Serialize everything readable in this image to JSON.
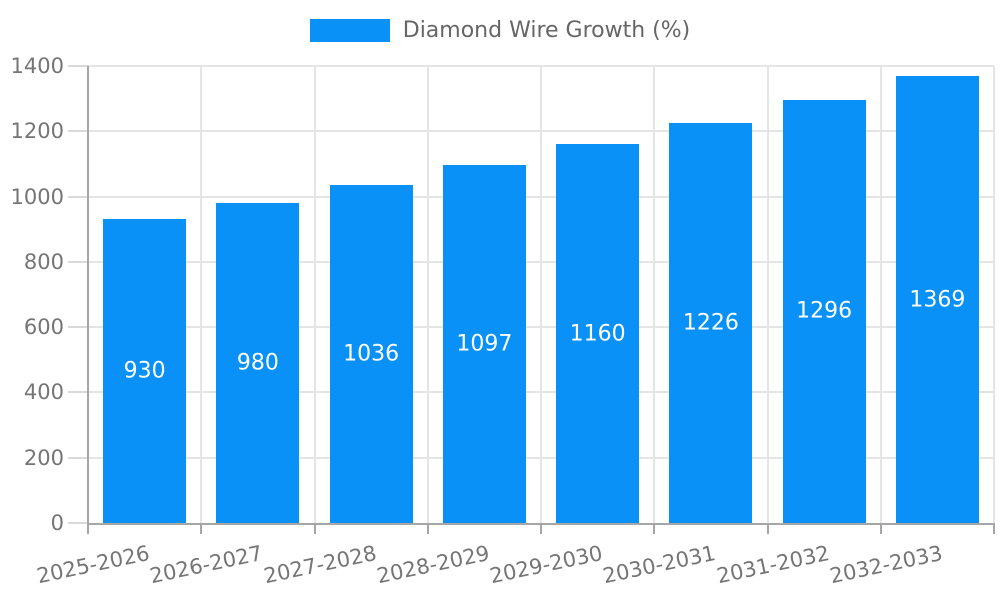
{
  "legend": {
    "label": "Diamond Wire Growth (%)"
  },
  "chart_data": {
    "type": "bar",
    "title": "",
    "categories": [
      "2025-2026",
      "2026-2027",
      "2027-2028",
      "2028-2029",
      "2029-2030",
      "2030-2031",
      "2031-2032",
      "2032-2033"
    ],
    "series": [
      {
        "name": "Diamond Wire Growth (%)",
        "values": [
          930,
          980,
          1036,
          1097,
          1160,
          1226,
          1296,
          1369
        ]
      }
    ],
    "value_labels": [
      "930",
      "980",
      "1036",
      "1097",
      "1160",
      "1226",
      "1296",
      "1369"
    ],
    "xlabel": "",
    "ylabel": "",
    "ylim": [
      0,
      1400
    ],
    "yticks": [
      0,
      200,
      400,
      600,
      800,
      1000,
      1200,
      1400
    ],
    "grid": true,
    "legend_position": "top-center",
    "x_tick_rotation_deg": -12,
    "colors": {
      "bar": "#0991f8",
      "value_label": "#ffffff",
      "grid_line": "#e5e5e5",
      "y_tick_mark": "#d9d9d9",
      "axis_line": "#a6a6a6",
      "tick_label": "#757575",
      "legend_text": "#666666",
      "background": "#ffffff"
    }
  }
}
